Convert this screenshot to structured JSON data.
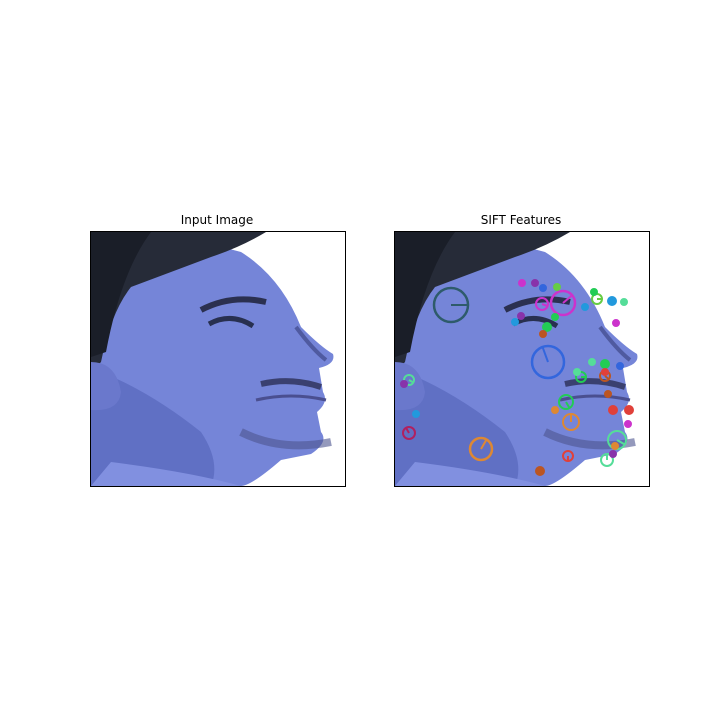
{
  "panels": {
    "input": {
      "title": "Input Image"
    },
    "sift": {
      "title": "SIFT Features"
    }
  },
  "photo": {
    "subject": "face-profile-icon",
    "tint": "#7585d8",
    "hair": "#262b38",
    "background": "#ffffff"
  },
  "keypoint_palette": [
    "#2e5b6b",
    "#cc33cc",
    "#3366dd",
    "#22cc55",
    "#dd8833",
    "#e0403a",
    "#55dd99",
    "#8833aa",
    "#2299dd",
    "#66cc44",
    "#b02060",
    "#bb5522"
  ]
}
